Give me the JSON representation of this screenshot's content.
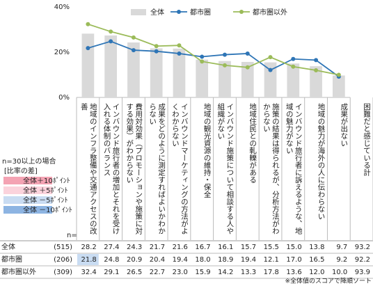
{
  "chart_data": {
    "type": "bar-line-table",
    "categories": [
      "地域のインフラ整備や交通アクセスの改善",
      "インバウンド旅行者の増加とそれを受け入れる体制のバランス",
      "費用対効果（プロモーションや施策に対する効果）がわからない",
      "成果をどのように測定すればよいかわからない",
      "インバウンドマーケティングの方法がよくわからない",
      "地域の観光資源の維持・保全",
      "インバウンド施策について相談する人や組織がない",
      "地域住民との軋轢がある",
      "施策の結果は得られるが、分析方法がわからない",
      "インバウンド旅行者に訴えるような、地域の魅力がない",
      "地域の魅力が海外の人に伝わらない",
      "成果が出ない",
      "困難だと感じている計"
    ],
    "series": [
      {
        "name": "全体",
        "kind": "bar",
        "color": "#d9d9d9",
        "sample_size": "(515)",
        "values": [
          28.2,
          27.4,
          24.3,
          21.7,
          21.6,
          16.7,
          16.1,
          15.7,
          15.5,
          15.0,
          13.8,
          9.7,
          93.2
        ],
        "value_labels": [
          "28.2",
          "27.4",
          "24.3",
          "21.7",
          "21.6",
          "16.7",
          "16.1",
          "15.7",
          "15.5",
          "15.0",
          "13.8",
          "9.7",
          "93.2"
        ]
      },
      {
        "name": "都市圏",
        "kind": "line",
        "color": "#2e75b6",
        "sample_size": "(206)",
        "values": [
          21.8,
          24.8,
          20.9,
          20.4,
          19.4,
          18.0,
          18.9,
          19.4,
          12.1,
          17.0,
          16.5,
          9.2,
          92.2
        ],
        "value_labels": [
          "21.8",
          "24.8",
          "20.9",
          "20.4",
          "19.4",
          "18.0",
          "18.9",
          "19.4",
          "12.1",
          "17.0",
          "16.5",
          "9.2",
          "92.2"
        ]
      },
      {
        "name": "都市圏以外",
        "kind": "line",
        "color": "#9bbb59",
        "sample_size": "(309)",
        "values": [
          32.4,
          29.1,
          26.5,
          22.7,
          23.0,
          15.9,
          14.2,
          13.3,
          17.8,
          13.6,
          12.0,
          10.0,
          93.9
        ],
        "value_labels": [
          "32.4",
          "29.1",
          "26.5",
          "22.7",
          "23.0",
          "15.9",
          "14.2",
          "13.3",
          "17.8",
          "13.6",
          "12.0",
          "10.0",
          "93.9"
        ]
      }
    ],
    "ylim": [
      0,
      40
    ],
    "yticks": [
      {
        "value": 0,
        "label": "0%"
      },
      {
        "value": 20,
        "label": "20%"
      },
      {
        "value": 40,
        "label": "40%"
      }
    ],
    "n_label": "n=",
    "highlight_title": "n=30以上の場合",
    "highlight_subtitle": "[比率の差]",
    "highlight_rules": [
      {
        "label": "全体＋10ﾎﾟｲﾝﾄ",
        "color": "#f4a3b3",
        "diff": 10
      },
      {
        "label": "全体 ＋5ﾎﾟｲﾝﾄ",
        "color": "#fbd3dc",
        "diff": 5
      },
      {
        "label": "全体 －5ﾎﾟｲﾝﾄ",
        "color": "#c9dcf2",
        "diff": -5
      },
      {
        "label": "全体 －10ﾎﾟｲﾝﾄ",
        "color": "#8db4e2",
        "diff": -10
      }
    ],
    "footnote": "※全体値のスコアで降順ソート"
  }
}
